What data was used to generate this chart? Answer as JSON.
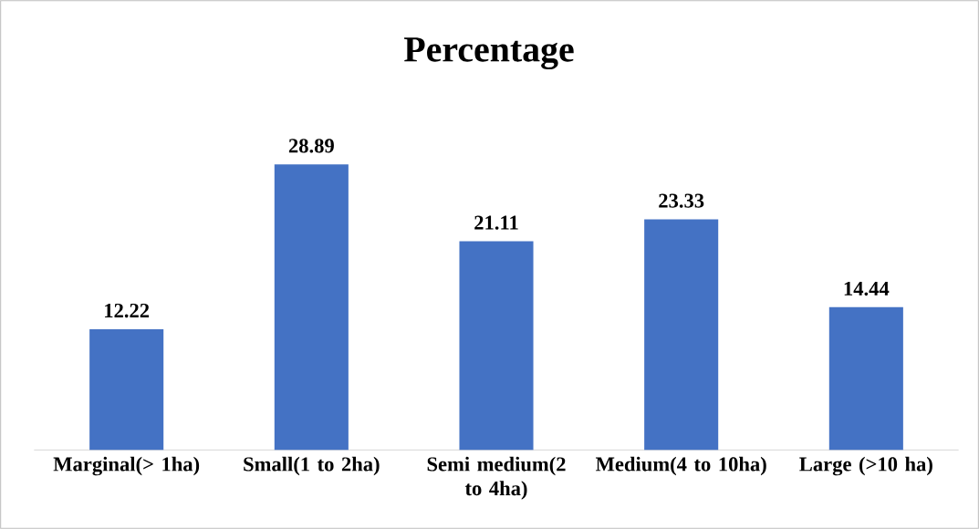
{
  "chart_data": {
    "type": "bar",
    "title": "Percentage",
    "categories": [
      "Marginal(> 1ha)",
      "Small(1 to 2ha)",
      "Semi medium(2 to 4ha)",
      "Medium(4 to 10ha)",
      "Large (>10 ha)"
    ],
    "values": [
      12.22,
      28.89,
      21.11,
      23.33,
      14.44
    ],
    "color": "#4472c4",
    "data_labels": true
  }
}
